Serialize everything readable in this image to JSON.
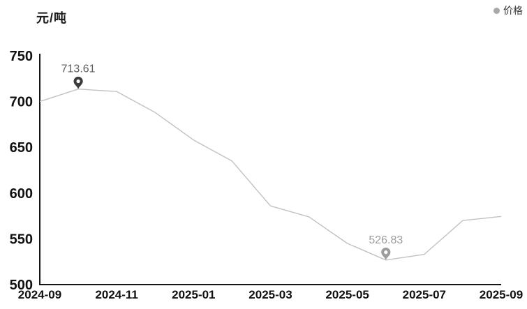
{
  "header": {
    "unit_label": "元/吨"
  },
  "legend": {
    "label": "价格",
    "dot_color": "#a8a8a8"
  },
  "chart_data": {
    "type": "line",
    "title": "元/吨",
    "series": [
      {
        "name": "价格",
        "values": [
          700,
          713.61,
          711,
          688,
          658,
          635,
          586,
          574,
          545,
          526.83,
          533,
          570,
          574.5
        ]
      }
    ],
    "x": [
      "2024-09",
      "2024-10",
      "2024-11",
      "2024-12",
      "2025-01",
      "2025-02",
      "2025-03",
      "2025-04",
      "2025-05",
      "2025-06",
      "2025-07",
      "2025-08",
      "2025-09"
    ],
    "values": [
      700,
      713.61,
      711,
      688,
      658,
      635,
      586,
      574,
      545,
      526.83,
      533,
      570,
      574.5
    ],
    "xticks": [
      "2024-09",
      "2024-11",
      "2025-01",
      "2025-03",
      "2025-05",
      "2025-07",
      "2025-09"
    ],
    "yticks": [
      750,
      700,
      650,
      600,
      550,
      500
    ],
    "ylim": [
      500,
      750
    ],
    "grid": false,
    "legend_position": "top-right",
    "line_color": "#c2c2c2",
    "axis_color": "#141414",
    "tick_label_color": "#111111",
    "max_point": {
      "x": "2024-10",
      "value": 713.61,
      "label": "713.61",
      "pin_color": "#3c3c3c",
      "label_color": "#5f5f5f"
    },
    "min_point": {
      "x": "2025-06",
      "value": 526.83,
      "label": "526.83",
      "pin_color": "#9c9c9c",
      "label_color": "#9c9c9c"
    }
  }
}
